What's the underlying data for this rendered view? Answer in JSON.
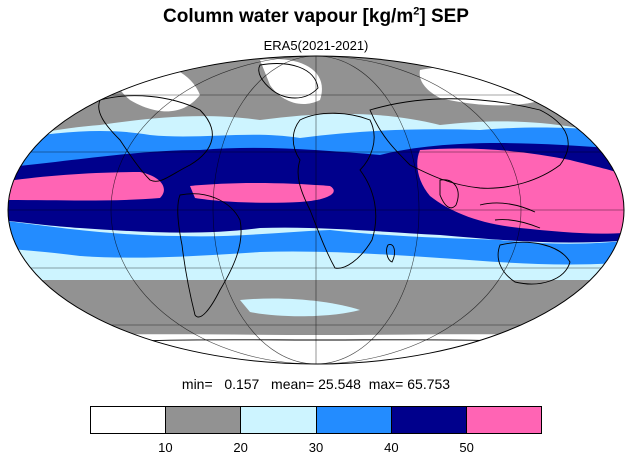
{
  "header": {
    "title_main": "Column water vapour [kg/m",
    "title_sup": "2",
    "title_end": "] SEP",
    "subtitle": "ERA5(2021-2021)"
  },
  "stats": {
    "min_label": "min=",
    "min_value": "0.157",
    "mean_label": "mean=",
    "mean_value": "25.548",
    "max_label": "max=",
    "max_value": "65.753"
  },
  "colorbar": {
    "colors": [
      "#ffffff",
      "#929292",
      "#cdf4ff",
      "#238cff",
      "#00008c",
      "#ff64b4"
    ],
    "ticks": [
      "10",
      "20",
      "30",
      "40",
      "50"
    ]
  },
  "map": {
    "projection": "mollweide",
    "land_outline_color": "#000000"
  }
}
